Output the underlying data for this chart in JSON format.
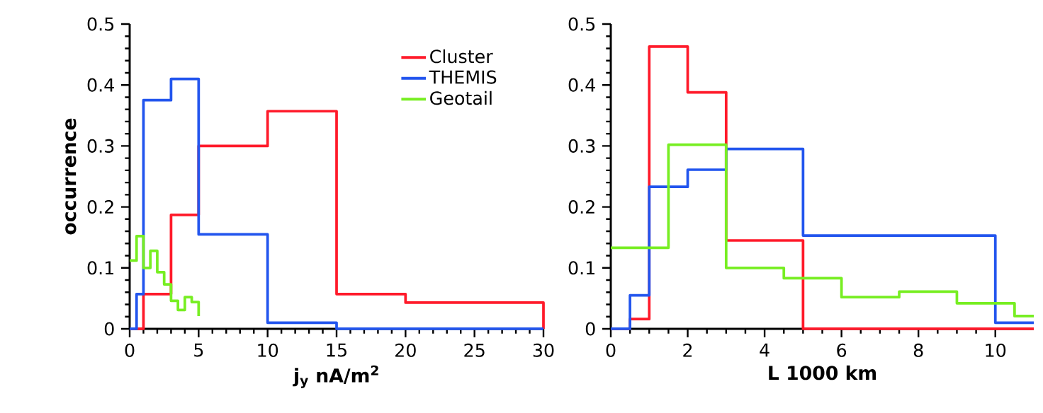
{
  "chart_data": [
    {
      "type": "step",
      "xlabel": "j$_{y}$ nA/m$^{2}$",
      "ylabel": "occurrence",
      "xlim": [
        0,
        30
      ],
      "ylim": [
        0,
        0.5
      ],
      "xticks": [
        0,
        5,
        10,
        15,
        20,
        25,
        30
      ],
      "yticks": [
        0,
        0.1,
        0.2,
        0.3,
        0.4,
        0.5
      ],
      "legend": "top right",
      "series": [
        {
          "name": "Cluster",
          "color": "#ff1a2a",
          "x": [
            0,
            1,
            3,
            5,
            10,
            15,
            20,
            30
          ],
          "values": [
            0,
            0.057,
            0.187,
            0.3,
            0.357,
            0.057,
            0.043,
            0
          ]
        },
        {
          "name": "THEMIS",
          "color": "#2255ee",
          "x": [
            0,
            0.5,
            1,
            3,
            5,
            10,
            15,
            30
          ],
          "values": [
            0,
            0.057,
            0.375,
            0.41,
            0.155,
            0.01,
            0,
            0
          ]
        },
        {
          "name": "Geotail",
          "color": "#77ee22",
          "x": [
            0,
            0.5,
            1,
            1.5,
            2,
            2.5,
            3,
            3.5,
            4,
            4.5,
            5
          ],
          "values": [
            0.112,
            0.152,
            0.1,
            0.128,
            0.093,
            0.073,
            0.046,
            0.031,
            0.052,
            0.044,
            0.021
          ]
        }
      ]
    },
    {
      "type": "step",
      "xlabel": "L 1000 km",
      "xlim": [
        0,
        11
      ],
      "ylim": [
        0,
        0.5
      ],
      "xticks": [
        0,
        2,
        4,
        6,
        8,
        10
      ],
      "yticks": [
        0,
        0.1,
        0.2,
        0.3,
        0.4,
        0.5
      ],
      "series": [
        {
          "color": "#ff1a2a",
          "x": [
            0,
            0.5,
            1,
            2,
            3,
            5,
            11
          ],
          "values": [
            0,
            0.016,
            0.463,
            0.388,
            0.145,
            0,
            0
          ]
        },
        {
          "color": "#2255ee",
          "x": [
            0,
            0.5,
            1,
            2,
            3,
            5,
            10,
            11
          ],
          "values": [
            0,
            0.055,
            0.233,
            0.261,
            0.295,
            0.153,
            0.01,
            0.01
          ]
        },
        {
          "color": "#77ee22",
          "x": [
            0,
            1.5,
            3,
            4.5,
            6,
            7.5,
            9,
            10.5,
            11
          ],
          "values": [
            0.133,
            0.302,
            0.1,
            0.083,
            0.052,
            0.061,
            0.042,
            0.021,
            0.021
          ]
        }
      ]
    }
  ]
}
